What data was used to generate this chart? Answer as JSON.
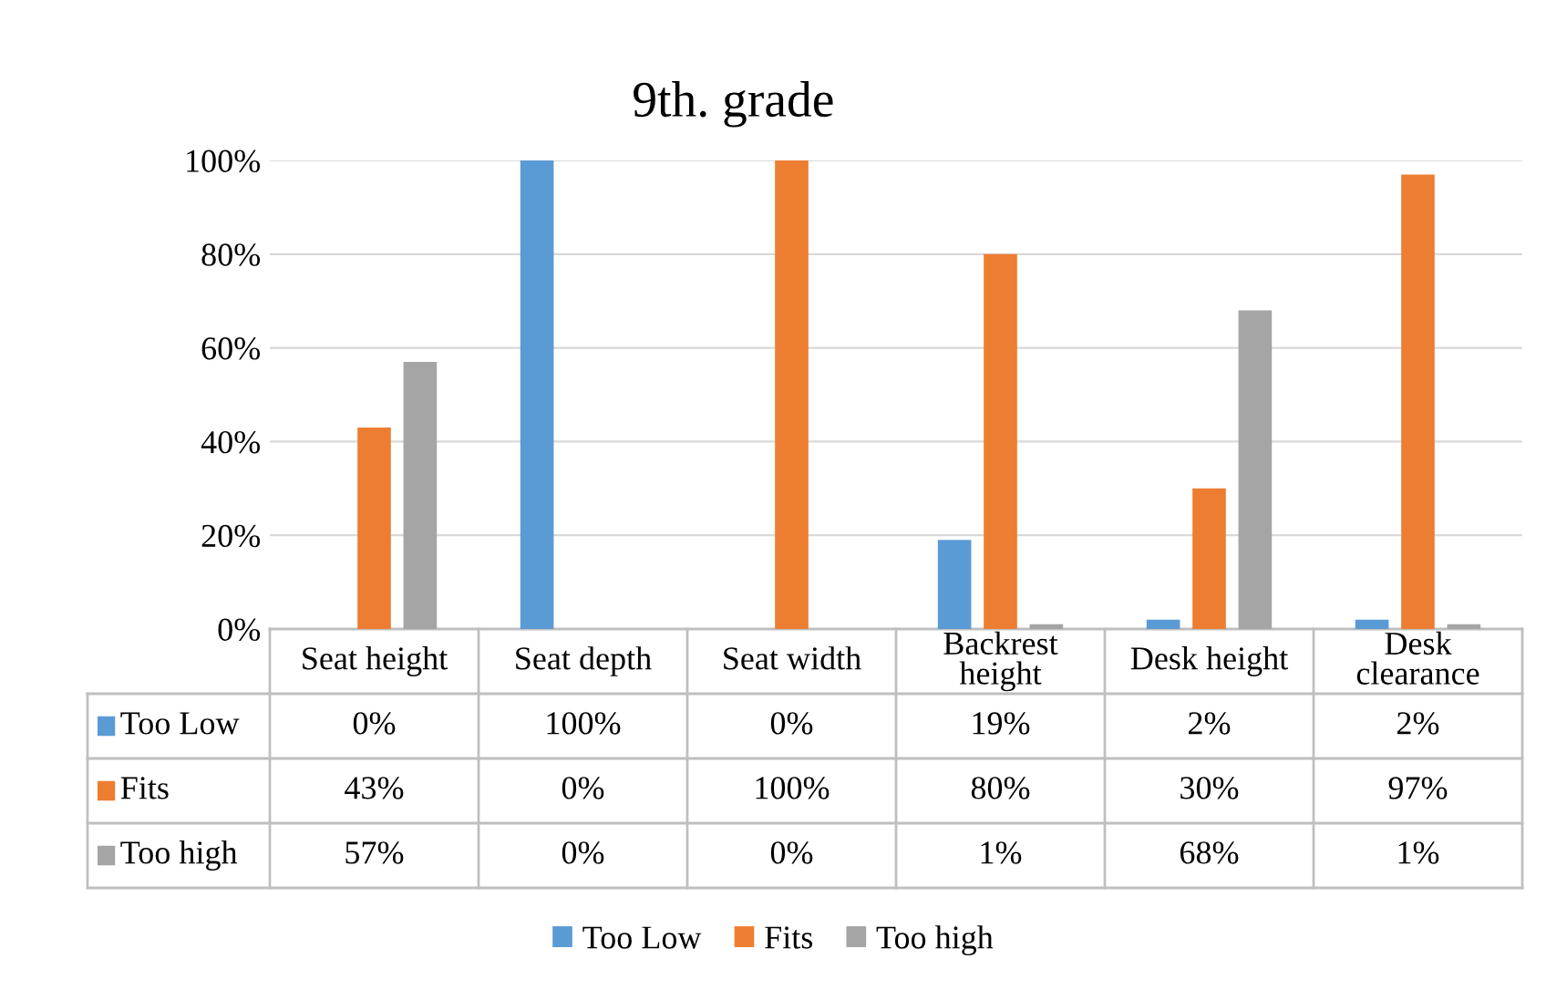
{
  "chart_data": {
    "type": "bar",
    "title": "9th. grade",
    "categories": [
      "Seat height",
      "Seat depth",
      "Seat width",
      "Backrest height",
      "Desk height",
      "Desk clearance"
    ],
    "series": [
      {
        "name": "Too Low",
        "color": "#5b9bd5",
        "values": [
          0,
          100,
          0,
          19,
          2,
          2
        ],
        "value_labels": [
          "0%",
          "100%",
          "0%",
          "19%",
          "2%",
          "2%"
        ]
      },
      {
        "name": "Fits",
        "color": "#ed7d31",
        "values": [
          43,
          0,
          100,
          80,
          30,
          97
        ],
        "value_labels": [
          "43%",
          "0%",
          "100%",
          "80%",
          "30%",
          "97%"
        ]
      },
      {
        "name": "Too high",
        "color": "#a5a5a5",
        "values": [
          57,
          0,
          0,
          1,
          68,
          1
        ],
        "value_labels": [
          "57%",
          "0%",
          "0%",
          "1%",
          "68%",
          "1%"
        ]
      }
    ],
    "ylim": [
      0,
      100
    ],
    "yticks": [
      {
        "value": 0,
        "label": "0%"
      },
      {
        "value": 20,
        "label": "20%"
      },
      {
        "value": 40,
        "label": "40%"
      },
      {
        "value": 60,
        "label": "60%"
      },
      {
        "value": 80,
        "label": "80%"
      },
      {
        "value": 100,
        "label": "100%"
      }
    ],
    "grid": "y",
    "legend": "bottom"
  }
}
